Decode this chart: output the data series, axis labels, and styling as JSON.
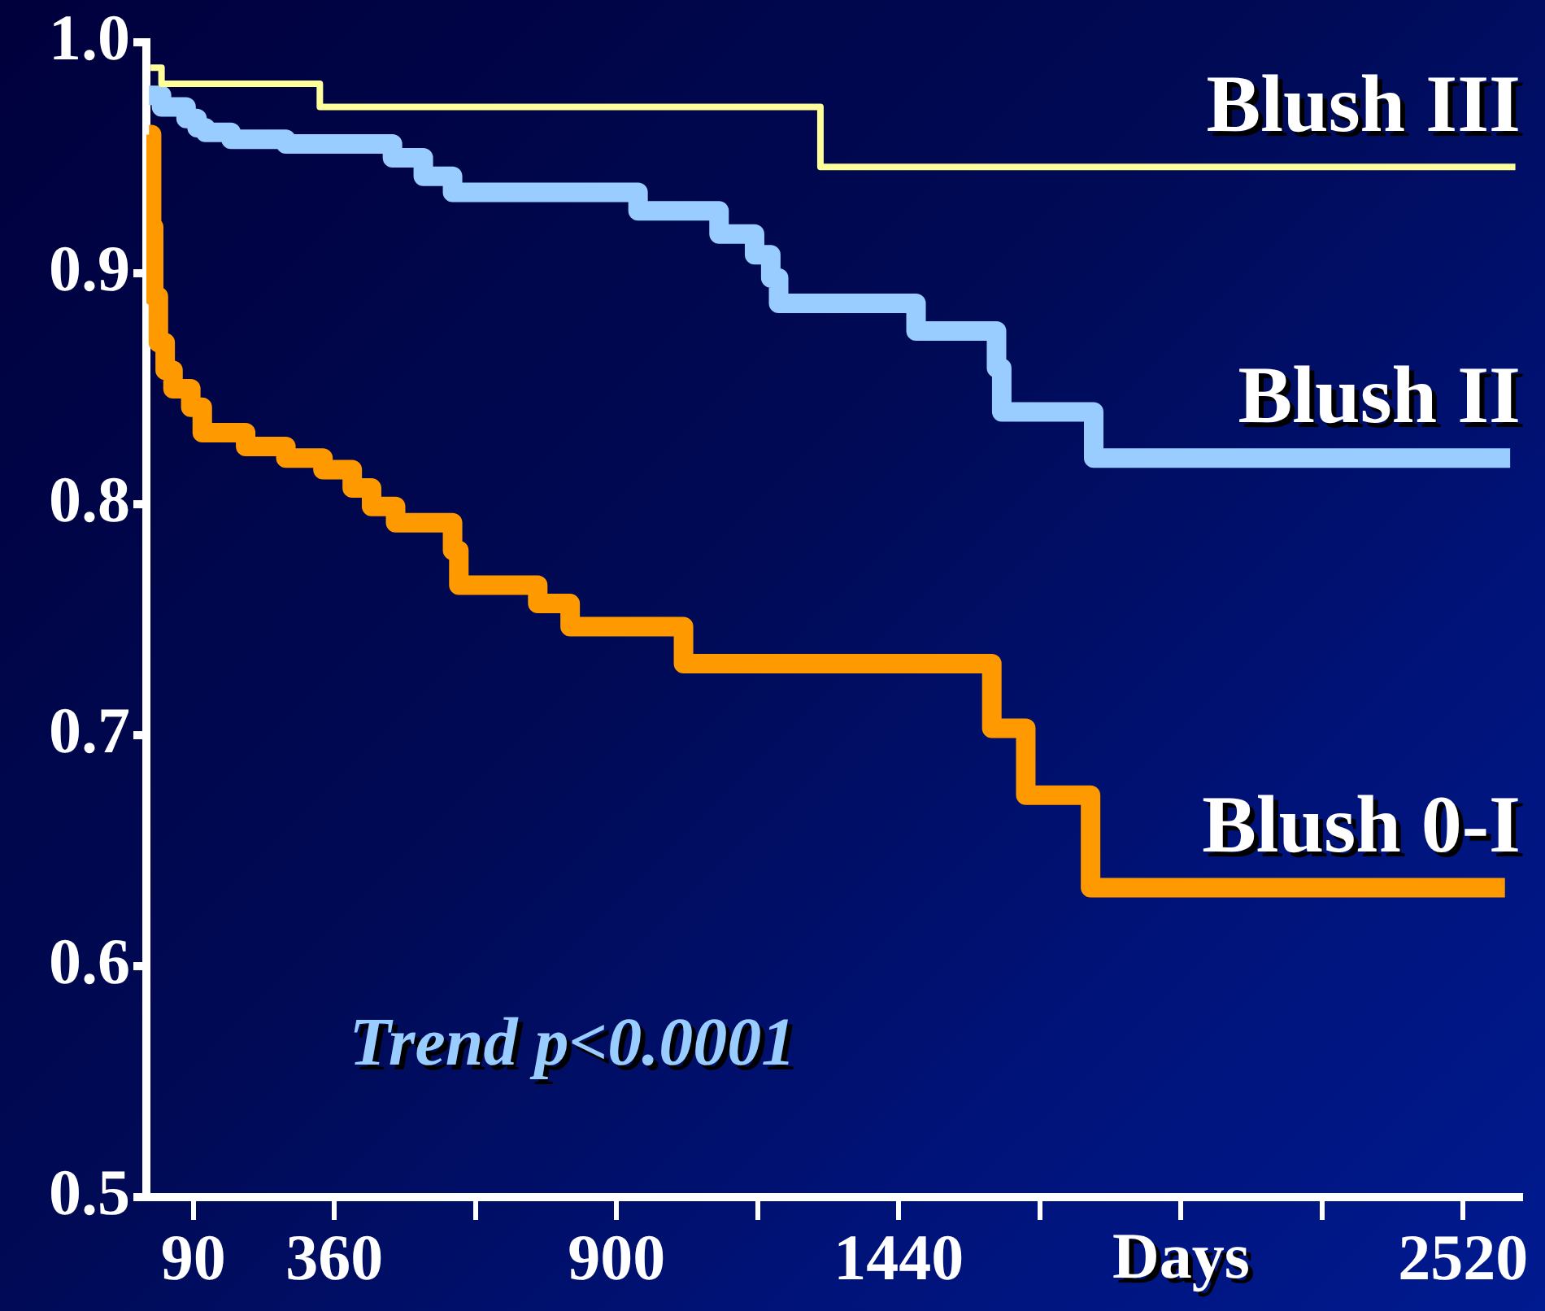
{
  "chart_data": {
    "type": "step",
    "xlabel": "Days",
    "xlim": [
      0,
      2630
    ],
    "ylim": [
      0.5,
      1.0
    ],
    "xticks": [
      90,
      360,
      {
        "value": 630,
        "label": null
      },
      900,
      {
        "value": 1170,
        "label": null
      },
      1440,
      {
        "value": 1710,
        "label": null
      },
      {
        "value": 1980,
        "label": null
      },
      {
        "value": 2250,
        "label": null
      },
      2520
    ],
    "yticks": [
      0.5,
      0.6,
      0.7,
      0.8,
      0.9,
      {
        "value": 1.0,
        "label": "1.0"
      }
    ],
    "annotations": [
      "Trend p<0.0001"
    ],
    "series": [
      {
        "name": "Blush III",
        "color": "#ffff99",
        "x": [
          8,
          29,
          332,
          1290,
          2620
        ],
        "values": [
          0.989,
          0.982,
          0.972,
          0.946,
          0.946
        ]
      },
      {
        "name": "Blush II",
        "color": "#99ccff",
        "x": [
          5,
          29,
          76,
          97,
          113,
          162,
          267,
          471,
          530,
          586,
          941,
          1096,
          1164,
          1195,
          1210,
          1473,
          1627,
          1637,
          1813,
          2610
        ],
        "values": [
          0.977,
          0.972,
          0.967,
          0.963,
          0.961,
          0.958,
          0.956,
          0.95,
          0.942,
          0.935,
          0.927,
          0.917,
          0.908,
          0.898,
          0.887,
          0.875,
          0.859,
          0.84,
          0.82,
          0.82
        ]
      },
      {
        "name": "Blush 0-I",
        "color": "#ff9900",
        "x": [
          5,
          10,
          14,
          23,
          36,
          51,
          85,
          107,
          190,
          267,
          338,
          394,
          431,
          477,
          586,
          598,
          749,
          811,
          1028,
          1618,
          1683,
          1807,
          2600
        ],
        "values": [
          0.96,
          0.92,
          0.89,
          0.87,
          0.858,
          0.85,
          0.842,
          0.831,
          0.825,
          0.82,
          0.815,
          0.807,
          0.799,
          0.792,
          0.78,
          0.765,
          0.757,
          0.747,
          0.731,
          0.703,
          0.674,
          0.634,
          0.634
        ]
      }
    ]
  }
}
